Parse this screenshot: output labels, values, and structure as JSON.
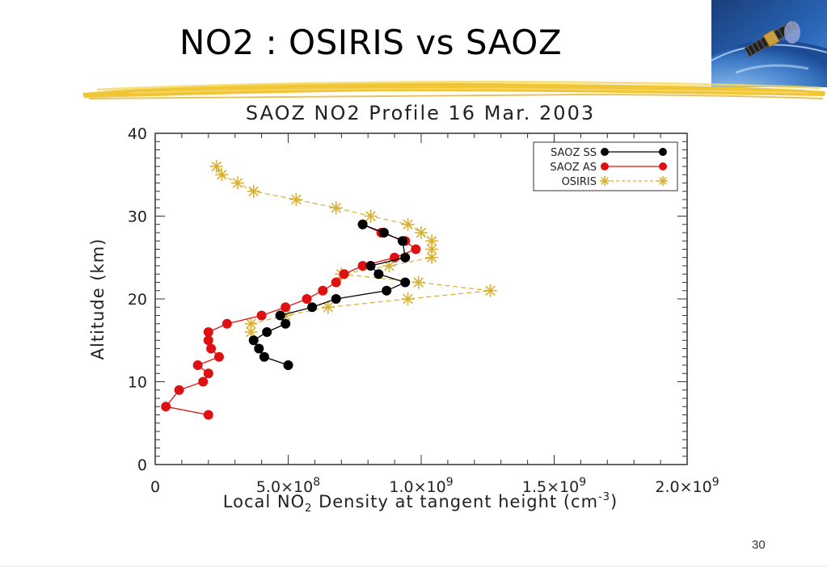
{
  "slide": {
    "title": "NO2 : OSIRIS vs SAOZ",
    "page_number": "30"
  },
  "colors": {
    "saoz_ss": "#000000",
    "saoz_as": "#dd1111",
    "osiris": "#d8b030",
    "brush": "#f0c020",
    "axis": "#333333"
  },
  "icons": {
    "satellite": "satellite-over-earth-icon"
  },
  "chart_data": {
    "type": "line",
    "title": "SAOZ NO2 Profile 16 Mar. 2003",
    "xlabel_parts": [
      "Local NO",
      "2",
      " Density at tangent height (cm",
      "-3",
      ")"
    ],
    "ylabel": "Altitude (km)",
    "xlim": [
      0,
      2000000000.0
    ],
    "ylim": [
      0,
      40
    ],
    "x_ticks": [
      {
        "value": 0,
        "label": "0"
      },
      {
        "value": 500000000.0,
        "mant": "5.0×10",
        "exp": "8"
      },
      {
        "value": 1000000000.0,
        "mant": "1.0×10",
        "exp": "9"
      },
      {
        "value": 1500000000.0,
        "mant": "1.5×10",
        "exp": "9"
      },
      {
        "value": 2000000000.0,
        "mant": "2.0×10",
        "exp": "9"
      }
    ],
    "y_ticks": [
      0,
      10,
      20,
      30,
      40
    ],
    "legend_position": "top-right",
    "series": [
      {
        "name": "SAOZ SS",
        "marker": "circle",
        "line": "solid",
        "points": [
          [
            500000000.0,
            12
          ],
          [
            410000000.0,
            13
          ],
          [
            390000000.0,
            14
          ],
          [
            370000000.0,
            15
          ],
          [
            420000000.0,
            16
          ],
          [
            490000000.0,
            17
          ],
          [
            470000000.0,
            18
          ],
          [
            590000000.0,
            19
          ],
          [
            680000000.0,
            20
          ],
          [
            870000000.0,
            21
          ],
          [
            940000000.0,
            22
          ],
          [
            840000000.0,
            23
          ],
          [
            810000000.0,
            24
          ],
          [
            940000000.0,
            25
          ],
          [
            930000000.0,
            27
          ],
          [
            860000000.0,
            28
          ],
          [
            780000000.0,
            29
          ]
        ]
      },
      {
        "name": "SAOZ AS",
        "marker": "circle",
        "line": "solid",
        "points": [
          [
            200000000.0,
            6
          ],
          [
            40000000.0,
            7
          ],
          [
            90000000.0,
            9
          ],
          [
            180000000.0,
            10
          ],
          [
            200000000.0,
            11
          ],
          [
            160000000.0,
            12
          ],
          [
            240000000.0,
            13
          ],
          [
            210000000.0,
            14
          ],
          [
            200000000.0,
            15
          ],
          [
            200000000.0,
            16
          ],
          [
            270000000.0,
            17
          ],
          [
            400000000.0,
            18
          ],
          [
            490000000.0,
            19
          ],
          [
            570000000.0,
            20
          ],
          [
            630000000.0,
            21
          ],
          [
            680000000.0,
            22
          ],
          [
            710000000.0,
            23
          ],
          [
            780000000.0,
            24
          ],
          [
            900000000.0,
            25
          ],
          [
            980000000.0,
            26
          ],
          [
            940000000.0,
            27
          ],
          [
            850000000.0,
            28
          ],
          [
            780000000.0,
            29
          ]
        ]
      },
      {
        "name": "OSIRIS",
        "marker": "asterisk",
        "line": "dashed",
        "points": [
          [
            360000000.0,
            16
          ],
          [
            360000000.0,
            17
          ],
          [
            490000000.0,
            18
          ],
          [
            650000000.0,
            19
          ],
          [
            950000000.0,
            20
          ],
          [
            1260000000.0,
            21
          ],
          [
            990000000.0,
            22
          ],
          [
            700000000.0,
            23
          ],
          [
            880000000.0,
            24
          ],
          [
            1040000000.0,
            25
          ],
          [
            1040000000.0,
            26
          ],
          [
            1040000000.0,
            27
          ],
          [
            1000000000.0,
            28
          ],
          [
            950000000.0,
            29
          ],
          [
            810000000.0,
            30
          ],
          [
            680000000.0,
            31
          ],
          [
            530000000.0,
            32
          ],
          [
            370000000.0,
            33
          ],
          [
            310000000.0,
            34
          ],
          [
            250000000.0,
            35
          ],
          [
            230000000.0,
            36
          ]
        ]
      }
    ]
  }
}
